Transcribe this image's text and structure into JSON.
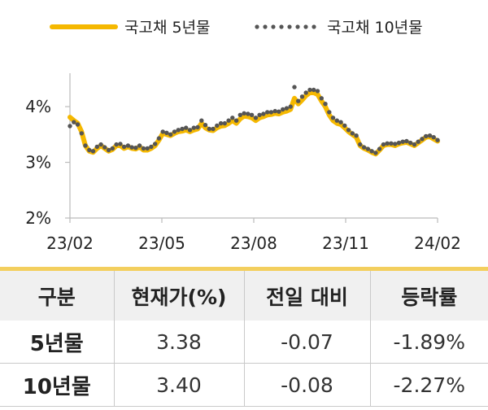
{
  "chart_data": {
    "type": "line",
    "x_labels": [
      "23/02",
      "23/05",
      "23/08",
      "23/11",
      "24/02"
    ],
    "y_tick_labels": [
      "4%",
      "3%",
      "2%"
    ],
    "y_ticks": [
      4,
      3,
      2
    ],
    "ylim": [
      2,
      4.6
    ],
    "legend_position": "top",
    "series": [
      {
        "name": "국고채 5년물",
        "style": "solid",
        "color": "#f5b800",
        "values": [
          3.81,
          3.75,
          3.7,
          3.55,
          3.3,
          3.2,
          3.18,
          3.25,
          3.3,
          3.25,
          3.2,
          3.23,
          3.3,
          3.3,
          3.25,
          3.28,
          3.25,
          3.24,
          3.28,
          3.22,
          3.22,
          3.25,
          3.3,
          3.4,
          3.52,
          3.5,
          3.48,
          3.52,
          3.55,
          3.56,
          3.58,
          3.55,
          3.58,
          3.6,
          3.7,
          3.62,
          3.58,
          3.57,
          3.62,
          3.65,
          3.66,
          3.7,
          3.75,
          3.7,
          3.78,
          3.83,
          3.82,
          3.8,
          3.75,
          3.8,
          3.82,
          3.85,
          3.86,
          3.88,
          3.87,
          3.9,
          3.92,
          3.95,
          4.15,
          4.05,
          4.12,
          4.2,
          4.25,
          4.25,
          4.22,
          4.1,
          4.0,
          3.85,
          3.75,
          3.7,
          3.68,
          3.62,
          3.55,
          3.5,
          3.45,
          3.3,
          3.25,
          3.22,
          3.18,
          3.15,
          3.22,
          3.3,
          3.32,
          3.32,
          3.3,
          3.33,
          3.35,
          3.36,
          3.33,
          3.3,
          3.35,
          3.4,
          3.45,
          3.46,
          3.42,
          3.38
        ]
      },
      {
        "name": "국고채 10년물",
        "style": "dotted",
        "color": "#555555",
        "values": [
          3.65,
          3.72,
          3.68,
          3.52,
          3.3,
          3.22,
          3.2,
          3.28,
          3.32,
          3.27,
          3.22,
          3.25,
          3.32,
          3.33,
          3.28,
          3.3,
          3.27,
          3.26,
          3.3,
          3.25,
          3.25,
          3.28,
          3.33,
          3.43,
          3.55,
          3.53,
          3.5,
          3.55,
          3.58,
          3.6,
          3.62,
          3.58,
          3.62,
          3.63,
          3.75,
          3.67,
          3.6,
          3.6,
          3.66,
          3.7,
          3.7,
          3.75,
          3.8,
          3.75,
          3.85,
          3.88,
          3.87,
          3.85,
          3.8,
          3.85,
          3.87,
          3.9,
          3.9,
          3.92,
          3.91,
          3.95,
          3.97,
          4.0,
          4.35,
          4.1,
          4.18,
          4.25,
          4.3,
          4.3,
          4.28,
          4.15,
          4.05,
          3.9,
          3.8,
          3.75,
          3.72,
          3.66,
          3.58,
          3.52,
          3.48,
          3.32,
          3.27,
          3.24,
          3.2,
          3.17,
          3.24,
          3.32,
          3.34,
          3.34,
          3.33,
          3.35,
          3.37,
          3.38,
          3.35,
          3.32,
          3.37,
          3.42,
          3.47,
          3.48,
          3.45,
          3.4
        ]
      }
    ]
  },
  "table": {
    "headers": [
      "구분",
      "현재가(%)",
      "전일 대비",
      "등락률"
    ],
    "rows": [
      [
        "5년물",
        "3.38",
        "-0.07",
        "-1.89%"
      ],
      [
        "10년물",
        "3.40",
        "-0.08",
        "-2.27%"
      ]
    ]
  }
}
